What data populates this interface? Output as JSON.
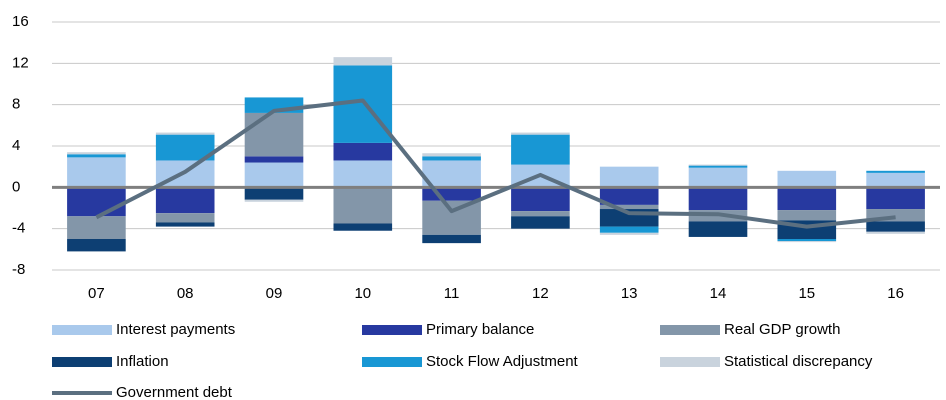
{
  "chart_data": {
    "type": "bar",
    "stacked": true,
    "categories": [
      "07",
      "08",
      "09",
      "10",
      "11",
      "12",
      "13",
      "14",
      "15",
      "16"
    ],
    "series": [
      {
        "name": "Interest payments",
        "color": "#a9c9ec",
        "values": [
          2.9,
          2.6,
          2.4,
          2.6,
          2.6,
          2.2,
          2.0,
          1.9,
          1.6,
          1.4
        ]
      },
      {
        "name": "Primary balance",
        "color": "#2739a0",
        "values": [
          -2.8,
          -2.5,
          0.6,
          1.7,
          -1.3,
          -2.3,
          -1.7,
          -2.2,
          -2.2,
          -2.1
        ]
      },
      {
        "name": "Real GDP growth",
        "color": "#8396a9",
        "values": [
          -2.2,
          -0.9,
          4.2,
          -3.5,
          -3.3,
          -0.5,
          -0.4,
          -1.1,
          -1.0,
          -1.2
        ]
      },
      {
        "name": "Inflation",
        "color": "#0d3f73",
        "values": [
          -1.2,
          -0.4,
          -1.2,
          -0.7,
          -0.8,
          -1.2,
          -1.7,
          -1.5,
          -1.8,
          -1.0
        ]
      },
      {
        "name": "Stock Flow Adjustment",
        "color": "#1897d4",
        "values": [
          0.3,
          2.5,
          1.5,
          7.5,
          0.4,
          2.9,
          -0.6,
          0.2,
          -0.2,
          0.2
        ]
      },
      {
        "name": "Statistical discrepancy",
        "color": "#c9d3dd",
        "values": [
          0.2,
          0.2,
          -0.2,
          0.8,
          0.3,
          0.2,
          -0.2,
          0.1,
          -0.1,
          -0.2
        ]
      }
    ],
    "line": {
      "name": "Government debt",
      "color": "#5b6f80",
      "values": [
        -2.9,
        1.5,
        7.4,
        8.4,
        -2.3,
        1.2,
        -2.5,
        -2.6,
        -3.8,
        -2.9
      ]
    },
    "ylim": [
      -8,
      16
    ],
    "yticks": [
      -8,
      -4,
      0,
      4,
      8,
      12,
      16
    ],
    "grid": true
  }
}
